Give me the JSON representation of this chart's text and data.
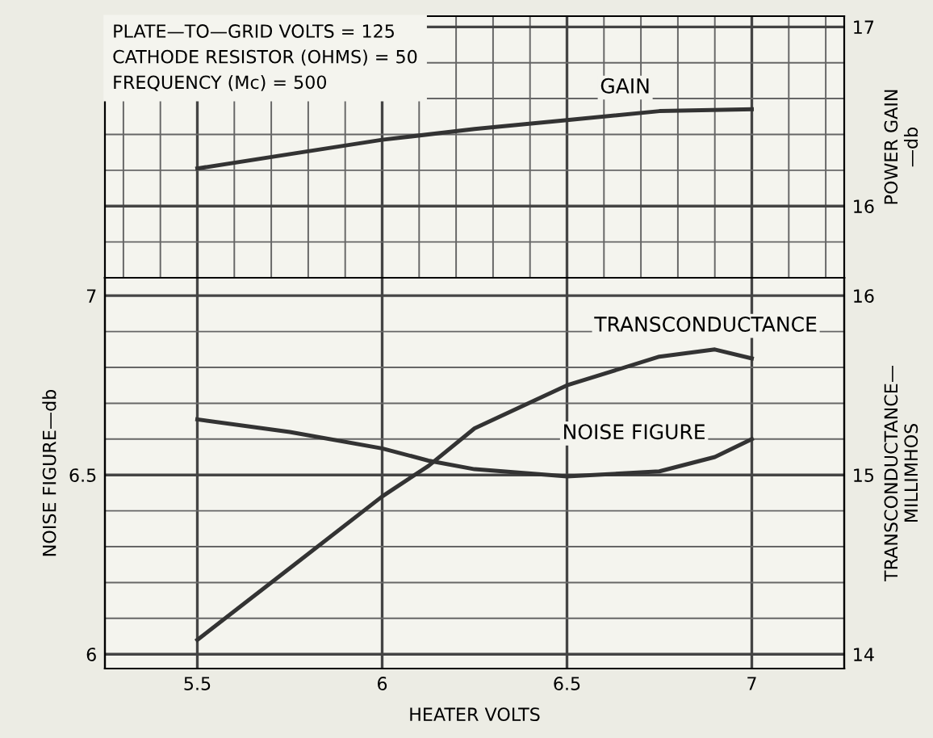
{
  "chart_data": [
    {
      "type": "line",
      "ylabel": "POWER GAIN\n—db",
      "x": [
        5.5,
        5.75,
        6,
        6.25,
        6.5,
        6.75,
        7
      ],
      "xlim": [
        5.25,
        7.25
      ],
      "xticks": [
        5.5,
        6,
        6.5,
        7
      ],
      "ylim": [
        15.6,
        17.06
      ],
      "yticks": [
        16,
        17
      ],
      "tick_labels": "y",
      "grid": true,
      "annotations": [
        "PLATE—TO—GRID VOLTS = 125",
        "CATHODE RESISTOR (OHMS) = 50",
        "FREQUENCY (Mc) = 500"
      ],
      "series": [
        {
          "name": "GAIN",
          "color": "#333333",
          "values": [
            16.21,
            16.29,
            16.37,
            16.43,
            16.48,
            16.53,
            16.54
          ]
        }
      ]
    },
    {
      "type": "line",
      "xlabel": "HEATER VOLTS",
      "ylabel": "NOISE FIGURE—db",
      "y2label": "TRANSCONDUCTANCE—\nMILLIMHOS",
      "x": [
        5.5,
        5.75,
        6,
        6.125,
        6.25,
        6.5,
        6.75,
        6.9,
        7
      ],
      "xlim": [
        5.25,
        7.25
      ],
      "xticks": [
        5.5,
        6,
        6.5,
        7
      ],
      "ylim": [
        5.96,
        7.05
      ],
      "yticks": [
        6,
        6.5,
        7
      ],
      "y2lim": [
        13.92,
        16.1
      ],
      "y2ticks": [
        14,
        15,
        16
      ],
      "grid": true,
      "series": [
        {
          "name": "NOISE FIGURE",
          "color": "#333333",
          "values": [
            6.655,
            6.62,
            6.574,
            6.54,
            6.516,
            6.496,
            6.51,
            6.55,
            6.6
          ]
        },
        {
          "name": "TRANSCONDUCTANCE",
          "color": "#333333",
          "axis": "y2",
          "values": [
            14.08,
            14.48,
            14.88,
            15.05,
            15.26,
            15.5,
            15.66,
            15.7,
            15.65
          ]
        }
      ]
    }
  ]
}
